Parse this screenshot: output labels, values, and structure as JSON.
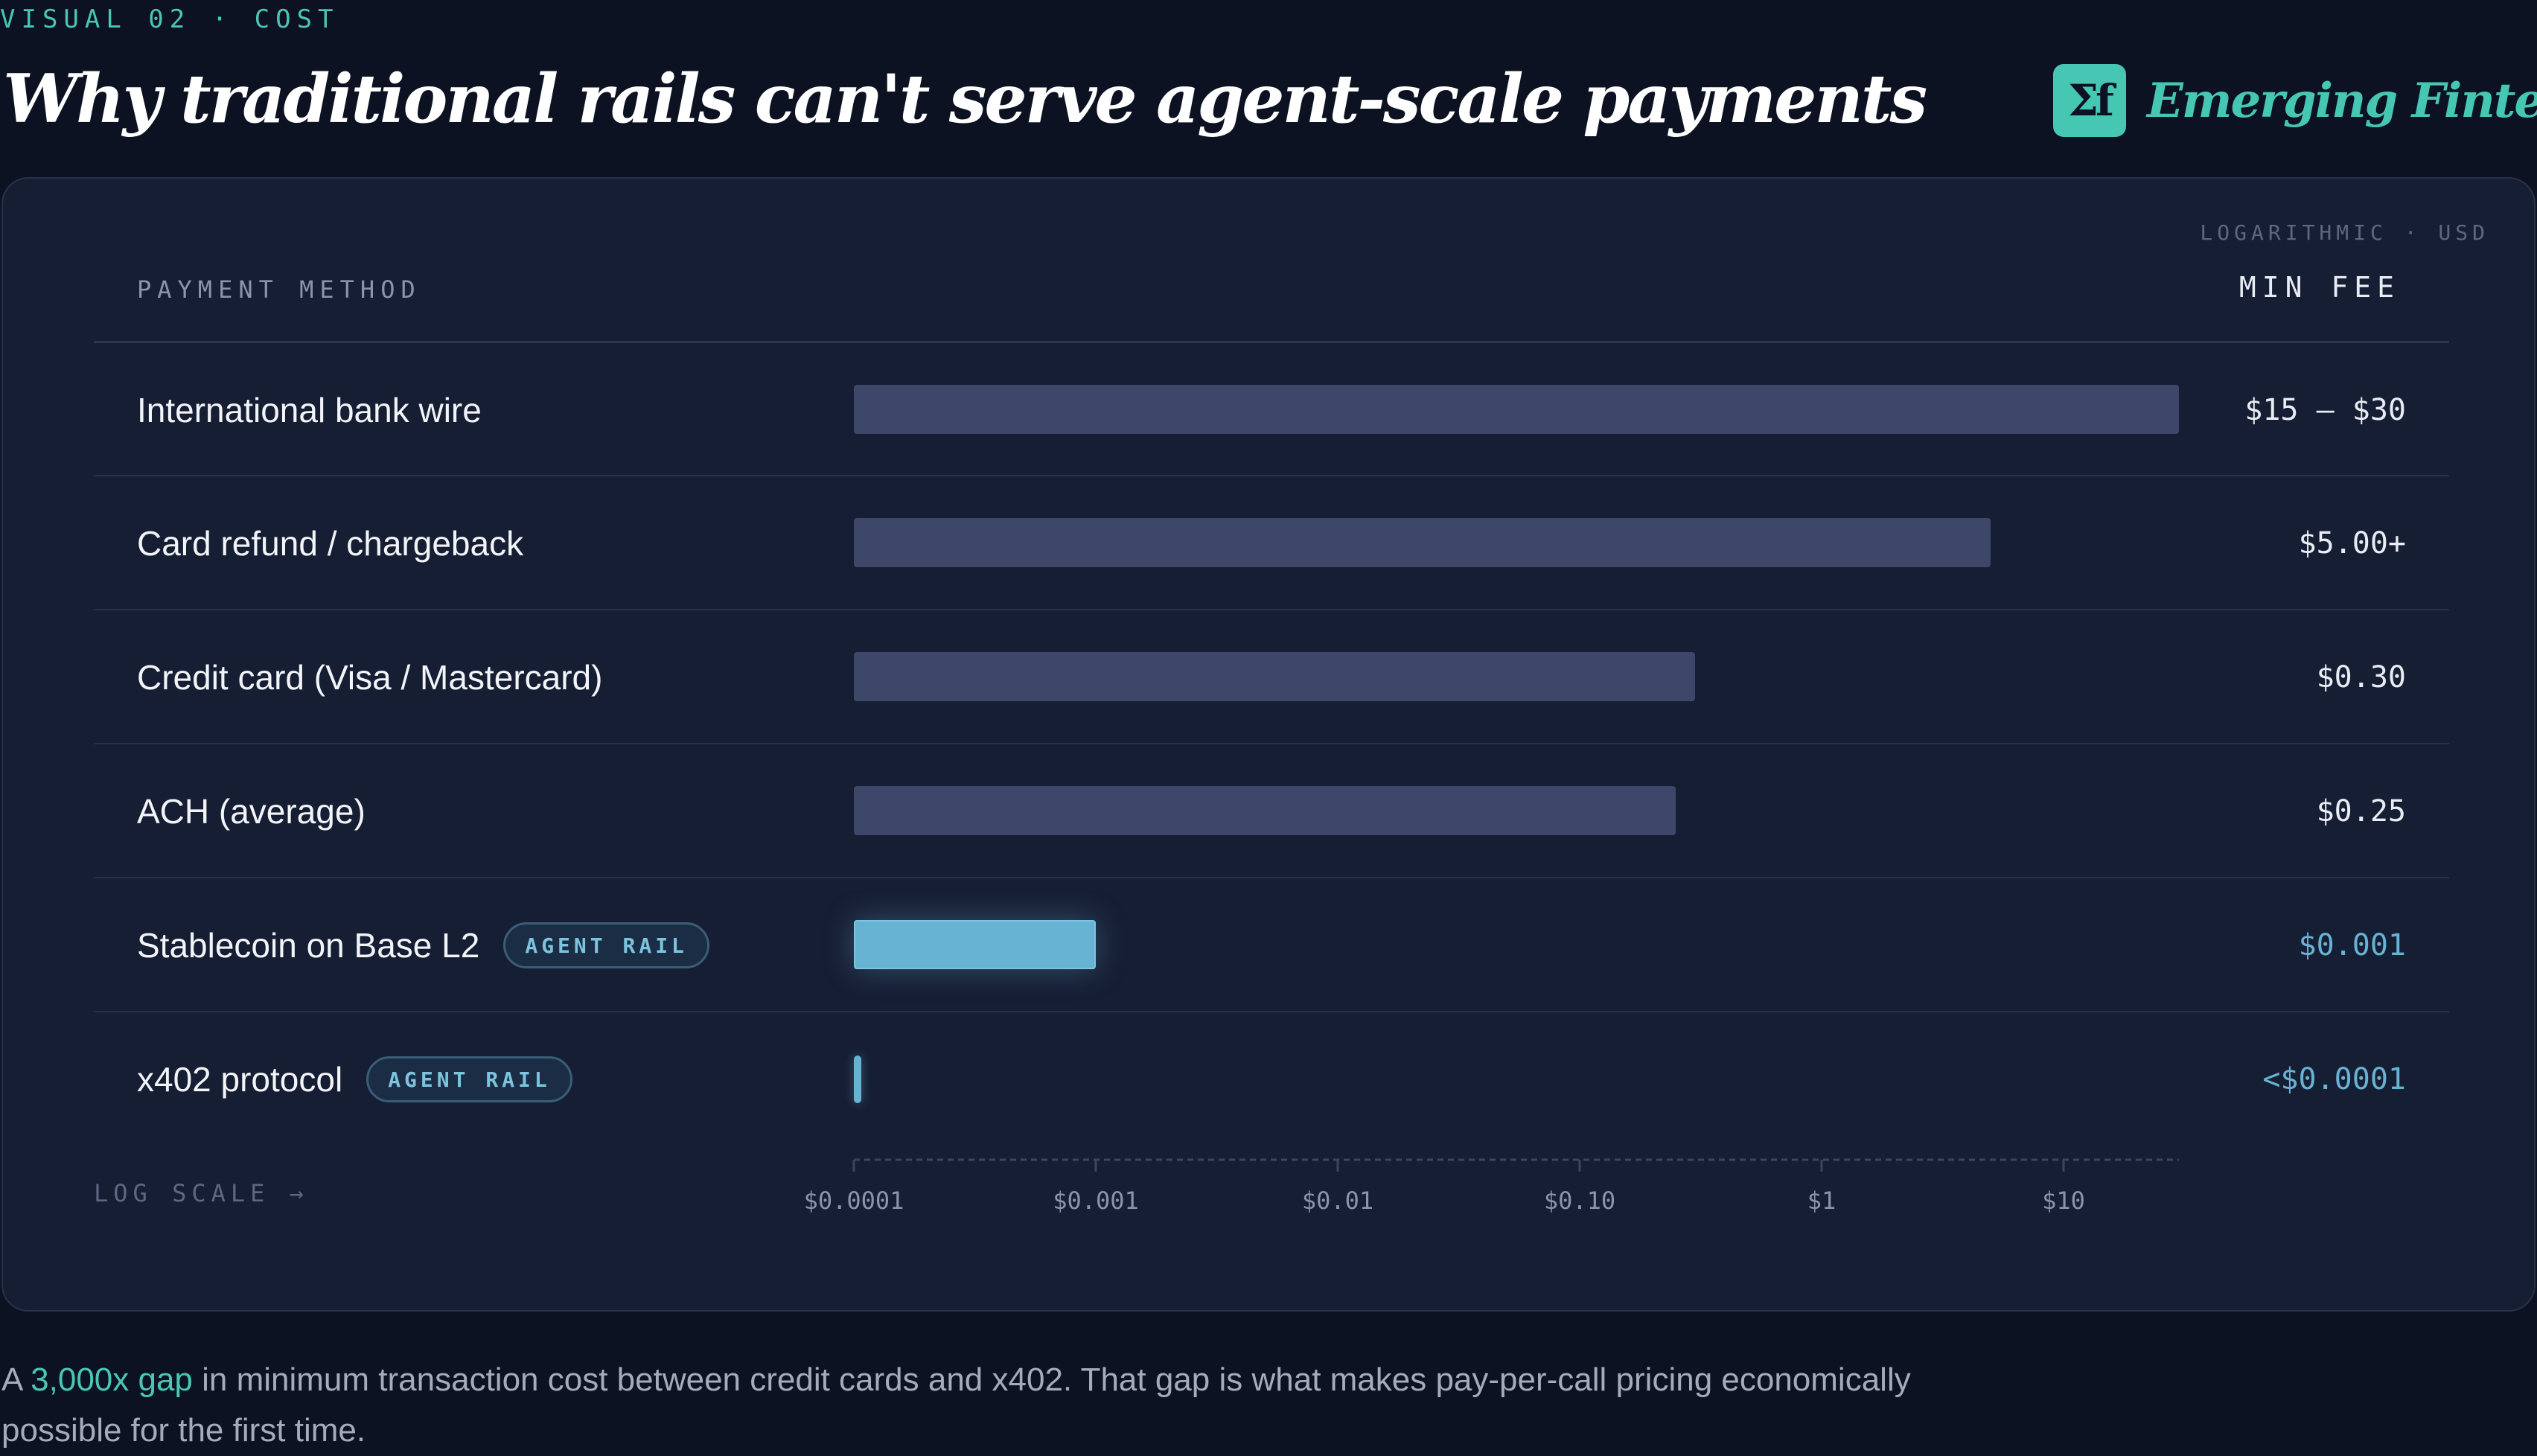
{
  "eyebrow": "VISUAL 02 · COST",
  "title": "Why traditional rails can't serve agent-scale payments",
  "brand": {
    "logo_text": "Σf",
    "name": "Emerging Fintech"
  },
  "colors": {
    "accent": "#45c7b3",
    "bar_default": "#3c476a",
    "bar_agent": "#66b3d4",
    "background": "#0c1222",
    "panel": "#161e33"
  },
  "chart_data": {
    "type": "bar",
    "orientation": "horizontal",
    "scale_note": "LOGARITHMIC · USD",
    "column_header_left": "PAYMENT METHOD",
    "column_header_right": "MIN FEE",
    "axis_label": "LOG SCALE →",
    "x_scale": "log",
    "xlim": [
      0.0001,
      30
    ],
    "x_ticks": [
      {
        "value": 0.0001,
        "label": "$0.0001"
      },
      {
        "value": 0.001,
        "label": "$0.001"
      },
      {
        "value": 0.01,
        "label": "$0.01"
      },
      {
        "value": 0.1,
        "label": "$0.10"
      },
      {
        "value": 1,
        "label": "$1"
      },
      {
        "value": 10,
        "label": "$10"
      }
    ],
    "rows": [
      {
        "name": "International bank wire",
        "value": 30,
        "display": "$15 – $30",
        "agent": false,
        "badge": ""
      },
      {
        "name": "Card refund / chargeback",
        "value": 5,
        "display": "$5.00+",
        "agent": false,
        "badge": ""
      },
      {
        "name": "Credit card (Visa / Mastercard)",
        "value": 0.3,
        "display": "$0.30",
        "agent": false,
        "badge": ""
      },
      {
        "name": "ACH (average)",
        "value": 0.25,
        "display": "$0.25",
        "agent": false,
        "badge": ""
      },
      {
        "name": "Stablecoin on Base L2",
        "value": 0.001,
        "display": "$0.001",
        "agent": true,
        "badge": "AGENT RAIL"
      },
      {
        "name": "x402 protocol",
        "value": 0.0001,
        "display": "<$0.0001",
        "agent": true,
        "badge": "AGENT RAIL"
      }
    ]
  },
  "caption": {
    "prefix": "A ",
    "highlight": "3,000x gap",
    "suffix": " in minimum transaction cost between credit cards and x402. That gap is what makes pay-per-call pricing economically possible for the first time."
  }
}
